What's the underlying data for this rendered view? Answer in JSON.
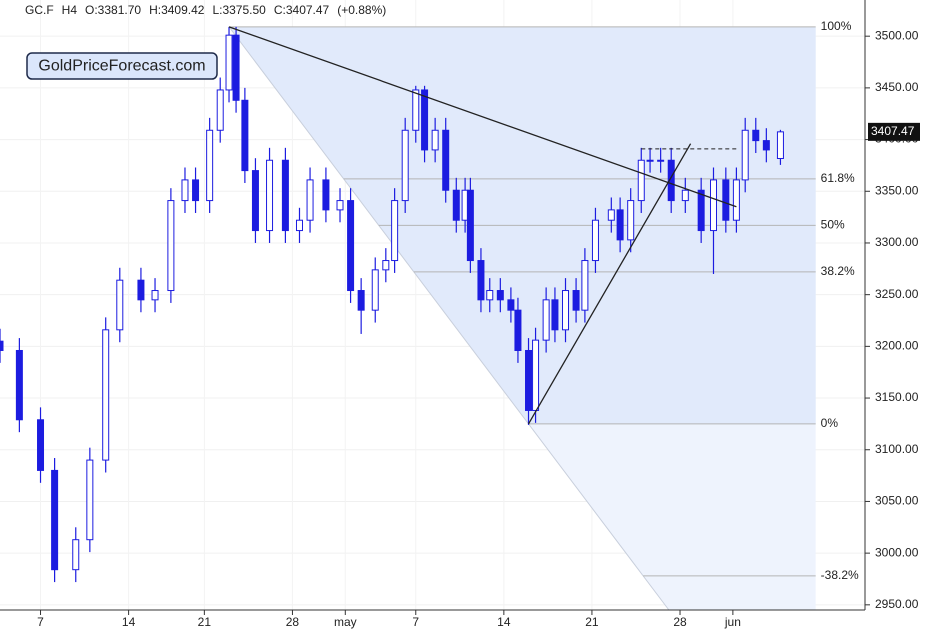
{
  "chart_data": {
    "type": "candlestick",
    "header": [
      "GC.F",
      "H4",
      "O:3381.70",
      "H:3409.42",
      "L:3375.50",
      "C:3407.47",
      "(+0.88%)"
    ],
    "logo": "GoldPriceForecast.com",
    "color": "#1c1ce0",
    "x": [
      0,
      1.1,
      2.3,
      3.1,
      4.3,
      5.1,
      6.0,
      6.8,
      8.0,
      8.8,
      9.7,
      10.5,
      11.1,
      11.9,
      12.5,
      13.0,
      13.4,
      13.9,
      14.5,
      15.3,
      16.2,
      17.0,
      17.6,
      18.5,
      19.3,
      19.9,
      20.5,
      21.3,
      21.9,
      22.4,
      23.0,
      23.6,
      24.1,
      24.7,
      25.3,
      25.9,
      26.4,
      26.7,
      27.3,
      27.8,
      28.4,
      29.0,
      29.4,
      30.0,
      30.4,
      31.0,
      31.5,
      32.1,
      32.7,
      33.2,
      33.8,
      34.7,
      35.2,
      35.8,
      36.4,
      36.9,
      37.5,
      38.1,
      38.9,
      39.8,
      40.5,
      41.2,
      41.8,
      42.3,
      42.9,
      43.5,
      44.3
    ],
    "open": [
      3205,
      3196,
      3129,
      3080,
      2984,
      3013,
      3090,
      3216,
      3264,
      3245,
      3254,
      3341,
      3361,
      3341,
      3409,
      3448,
      3501,
      3438,
      3370,
      3312,
      3380,
      3312,
      3322,
      3361,
      3332,
      3341,
      3254,
      3235,
      3274,
      3283,
      3341,
      3409,
      3448,
      3390,
      3409,
      3351,
      3322,
      3351,
      3283,
      3245,
      3254,
      3245,
      3235,
      3196,
      3138,
      3206,
      3245,
      3216,
      3254,
      3235,
      3283,
      3322,
      3332,
      3303,
      3341,
      3380,
      3380,
      3380,
      3341,
      3351,
      3312,
      3361,
      3322,
      3361,
      3409,
      3399,
      3381.7
    ],
    "high": [
      3217,
      3208,
      3141,
      3092,
      3025,
      3102,
      3228,
      3276,
      3276,
      3266,
      3353,
      3373,
      3373,
      3421,
      3460,
      3509,
      3509,
      3450,
      3382,
      3392,
      3392,
      3334,
      3373,
      3373,
      3353,
      3353,
      3266,
      3286,
      3295,
      3353,
      3421,
      3452,
      3452,
      3421,
      3421,
      3363,
      3363,
      3363,
      3295,
      3266,
      3266,
      3257,
      3247,
      3208,
      3218,
      3257,
      3257,
      3266,
      3266,
      3295,
      3334,
      3344,
      3344,
      3353,
      3392,
      3392,
      3392,
      3392,
      3363,
      3363,
      3373,
      3373,
      3373,
      3421,
      3421,
      3411,
      3409.42
    ],
    "low": [
      3184,
      3117,
      3068,
      2972,
      2972,
      3001,
      3078,
      3204,
      3233,
      3233,
      3242,
      3329,
      3329,
      3329,
      3397,
      3436,
      3426,
      3358,
      3300,
      3300,
      3300,
      3300,
      3310,
      3320,
      3320,
      3242,
      3212,
      3223,
      3262,
      3271,
      3329,
      3397,
      3378,
      3378,
      3339,
      3310,
      3310,
      3271,
      3233,
      3233,
      3233,
      3223,
      3184,
      3124,
      3126,
      3194,
      3204,
      3204,
      3223,
      3223,
      3271,
      3310,
      3291,
      3291,
      3329,
      3368,
      3368,
      3329,
      3329,
      3300,
      3270,
      3310,
      3310,
      3349,
      3387,
      3378,
      3375.5
    ],
    "close": [
      3196,
      3129,
      3080,
      2984,
      3013,
      3090,
      3216,
      3264,
      3245,
      3254,
      3341,
      3361,
      3341,
      3409,
      3448,
      3501,
      3438,
      3370,
      3312,
      3380,
      3312,
      3322,
      3361,
      3332,
      3341,
      3254,
      3235,
      3274,
      3283,
      3341,
      3409,
      3448,
      3390,
      3409,
      3351,
      3322,
      3351,
      3283,
      3245,
      3254,
      3245,
      3235,
      3196,
      3138,
      3206,
      3245,
      3216,
      3254,
      3235,
      3283,
      3322,
      3332,
      3303,
      3341,
      3380,
      3380,
      3380,
      3341,
      3351,
      3312,
      3361,
      3322,
      3361,
      3409,
      3399,
      3390,
      3407.47
    ],
    "xlim": [
      0,
      49.1
    ],
    "ylim": [
      2945,
      3535
    ],
    "xticks": [
      {
        "value": 2.3,
        "label": "7"
      },
      {
        "value": 7.3,
        "label": "14"
      },
      {
        "value": 11.6,
        "label": "21"
      },
      {
        "value": 16.6,
        "label": "28"
      },
      {
        "value": 19.6,
        "label": "may"
      },
      {
        "value": 23.6,
        "label": "7"
      },
      {
        "value": 28.6,
        "label": "14"
      },
      {
        "value": 33.6,
        "label": "21"
      },
      {
        "value": 38.6,
        "label": "28"
      },
      {
        "value": 41.6,
        "label": "jun"
      }
    ],
    "yticks": [
      {
        "value": 2950,
        "label": "2950.00"
      },
      {
        "value": 3000,
        "label": "3000.00"
      },
      {
        "value": 3050,
        "label": "3050.00"
      },
      {
        "value": 3100,
        "label": "3100.00"
      },
      {
        "value": 3150,
        "label": "3150.00"
      },
      {
        "value": 3200,
        "label": "3200.00"
      },
      {
        "value": 3250,
        "label": "3250.00"
      },
      {
        "value": 3300,
        "label": "3300.00"
      },
      {
        "value": 3350,
        "label": "3350.00"
      },
      {
        "value": 3400,
        "label": "3400.00"
      },
      {
        "value": 3450,
        "label": "3450.00"
      },
      {
        "value": 3500,
        "label": "3500.00"
      }
    ],
    "grid": true,
    "fib": {
      "x": [
        13.0,
        30.0
      ],
      "y": [
        3509,
        3125
      ],
      "extend_x": 46.3,
      "levels": [
        {
          "value": 3509,
          "label": "100%"
        },
        {
          "value": 3362,
          "label": "61.8%"
        },
        {
          "value": 3317,
          "label": "50%"
        },
        {
          "value": 3272,
          "label": "38.2%"
        },
        {
          "value": 3125,
          "label": "0%"
        },
        {
          "value": 2978,
          "label": "-38.2%"
        }
      ]
    },
    "trendlines": [
      {
        "x": [
          13.0,
          41.8
        ],
        "y": [
          3509,
          3335
        ]
      },
      {
        "x": [
          30.0,
          39.2
        ],
        "y": [
          3125,
          3396
        ]
      }
    ],
    "dashed_lines": [
      {
        "x": [
          36.4,
          41.8
        ],
        "y": [
          3391,
          3391
        ]
      }
    ]
  }
}
